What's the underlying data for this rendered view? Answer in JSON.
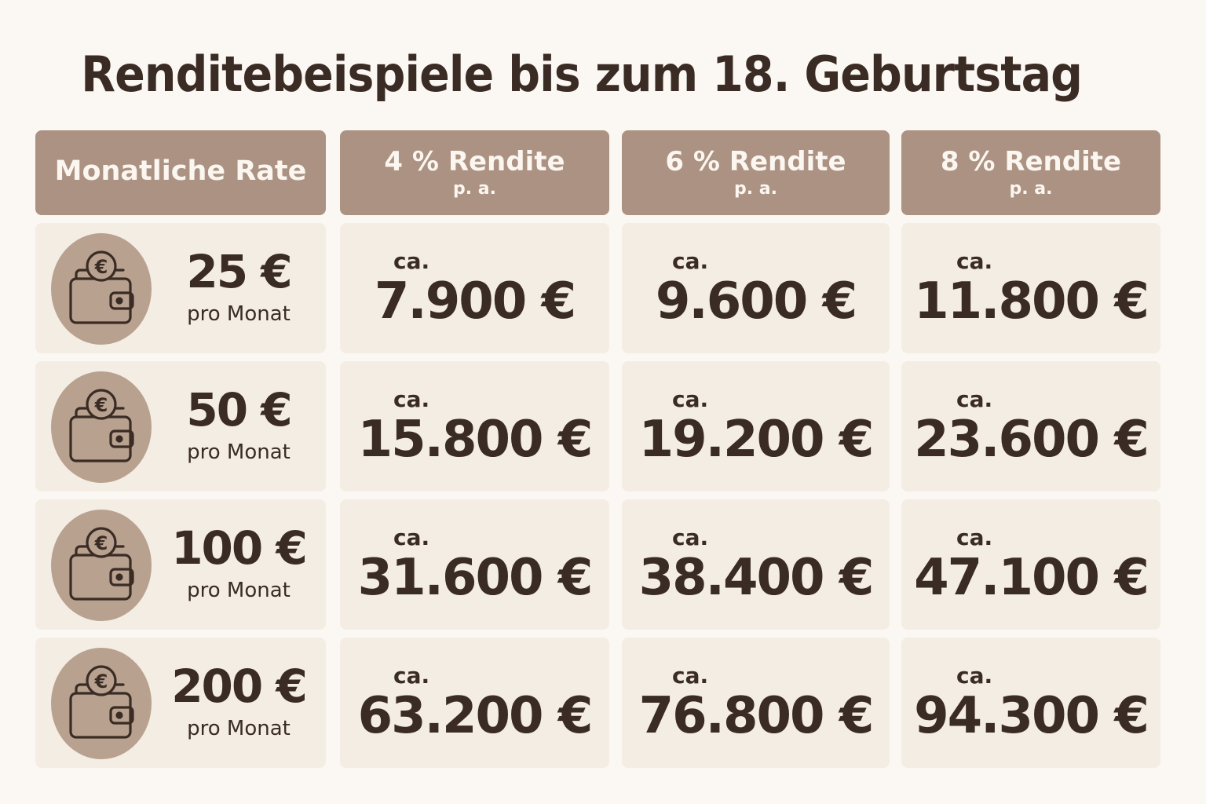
{
  "title": "Renditebeispiele bis zum 18. Geburtstag",
  "headers": {
    "rate": "Monatliche Rate",
    "col4": {
      "main": "4 % Rendite",
      "sub": "p. a."
    },
    "col6": {
      "main": "6 % Rendite",
      "sub": "p. a."
    },
    "col8": {
      "main": "8 % Rendite",
      "sub": "p. a."
    }
  },
  "rows": [
    {
      "amount": "25 €",
      "sub": "pro Monat",
      "ca": "ca.",
      "v4": "7.900 €",
      "v6": "9.600 €",
      "v8": "11.800 €"
    },
    {
      "amount": "50 €",
      "sub": "pro Monat",
      "ca": "ca.",
      "v4": "15.800 €",
      "v6": "19.200 €",
      "v8": "23.600 €"
    },
    {
      "amount": "100 €",
      "sub": "pro Monat",
      "ca": "ca.",
      "v4": "31.600 €",
      "v6": "38.400 €",
      "v8": "47.100 €"
    },
    {
      "amount": "200 €",
      "sub": "pro Monat",
      "ca": "ca.",
      "v4": "63.200 €",
      "v6": "76.800 €",
      "v8": "94.300 €"
    }
  ],
  "icons": {
    "rate": "wallet-euro-icon"
  },
  "colors": {
    "background": "#fbf7f2",
    "header": "#ab9282",
    "cell": "#f4ede4",
    "icon_circle": "#b8a18f",
    "text": "#3a2c25"
  }
}
